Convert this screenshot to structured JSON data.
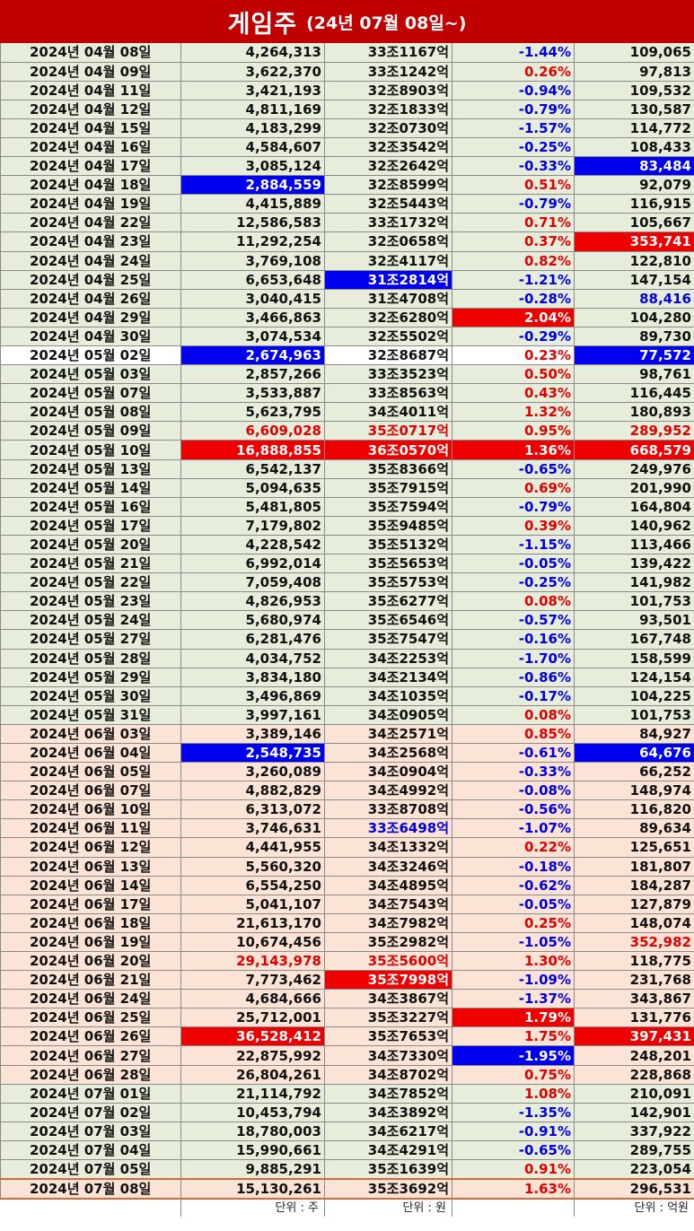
{
  "title": {
    "main": "게임주",
    "sub": "(24년 07월 08일~)"
  },
  "units": {
    "volume": "단위 : 주",
    "market_cap": "단위 : 원",
    "trade_value": "단위 : 억원"
  },
  "colors": {
    "title_bg": "#c00000",
    "highlight_red": "#ee0000",
    "highlight_blue": "#0000ee",
    "row_green": "#e6eedb",
    "row_peach": "#fbe4d6",
    "positive": "#e00000",
    "negative": "#0000e0"
  },
  "rows": [
    {
      "date": "2024년 04월 08일",
      "volume": "4,264,313",
      "cap": "33조1167억",
      "change": "-1.44%",
      "value": "109,065",
      "bg": "g",
      "dir": "neg"
    },
    {
      "date": "2024년 04월 09일",
      "volume": "3,622,370",
      "cap": "33조1242억",
      "change": "0.26%",
      "value": "97,813",
      "bg": "g",
      "dir": "pos"
    },
    {
      "date": "2024년 04월 11일",
      "volume": "3,421,193",
      "cap": "32조8903억",
      "change": "-0.94%",
      "value": "109,532",
      "bg": "g",
      "dir": "neg"
    },
    {
      "date": "2024년 04월 12일",
      "volume": "4,811,169",
      "cap": "32조1833억",
      "change": "-0.79%",
      "value": "130,587",
      "bg": "g",
      "dir": "neg"
    },
    {
      "date": "2024년 04월 15일",
      "volume": "4,183,299",
      "cap": "32조0730억",
      "change": "-1.57%",
      "value": "114,772",
      "bg": "g",
      "dir": "neg"
    },
    {
      "date": "2024년 04월 16일",
      "volume": "4,584,607",
      "cap": "32조3542억",
      "change": "-0.25%",
      "value": "108,433",
      "bg": "g",
      "dir": "neg"
    },
    {
      "date": "2024년 04월 17일",
      "volume": "3,085,124",
      "cap": "32조2642억",
      "change": "-0.33%",
      "value": "83,484",
      "bg": "g",
      "dir": "neg",
      "hl_value": "hblue"
    },
    {
      "date": "2024년 04월 18일",
      "volume": "2,884,559",
      "cap": "32조8599억",
      "change": "0.51%",
      "value": "92,079",
      "bg": "g",
      "dir": "pos",
      "hl_volume": "hblue"
    },
    {
      "date": "2024년 04월 19일",
      "volume": "4,415,889",
      "cap": "32조5443억",
      "change": "-0.79%",
      "value": "116,915",
      "bg": "g",
      "dir": "neg"
    },
    {
      "date": "2024년 04월 22일",
      "volume": "12,586,583",
      "cap": "33조1732억",
      "change": "0.71%",
      "value": "105,667",
      "bg": "g",
      "dir": "pos"
    },
    {
      "date": "2024년 04월 23일",
      "volume": "11,292,254",
      "cap": "32조0658억",
      "change": "0.37%",
      "value": "353,741",
      "bg": "g",
      "dir": "pos",
      "hl_value": "hred"
    },
    {
      "date": "2024년 04월 24일",
      "volume": "3,769,108",
      "cap": "32조4117억",
      "change": "0.82%",
      "value": "122,810",
      "bg": "g",
      "dir": "pos"
    },
    {
      "date": "2024년 04월 25일",
      "volume": "6,653,648",
      "cap": "31조2814억",
      "change": "-1.21%",
      "value": "147,154",
      "bg": "g",
      "dir": "neg",
      "hl_cap": "hblue"
    },
    {
      "date": "2024년 04월 26일",
      "volume": "3,040,415",
      "cap": "31조4708억",
      "change": "-0.28%",
      "value": "88,416",
      "bg": "g",
      "dir": "neg",
      "hl_value": "fblue"
    },
    {
      "date": "2024년 04월 29일",
      "volume": "3,466,863",
      "cap": "32조6280억",
      "change": "2.04%",
      "value": "104,280",
      "bg": "g",
      "dir": "pos",
      "hl_change": "hred"
    },
    {
      "date": "2024년 04월 30일",
      "volume": "3,074,534",
      "cap": "32조5502억",
      "change": "-0.29%",
      "value": "89,730",
      "bg": "g",
      "dir": "neg"
    },
    {
      "date": "2024년 05월 02일",
      "volume": "2,674,963",
      "cap": "32조8687억",
      "change": "0.23%",
      "value": "77,572",
      "bg": "w",
      "dir": "pos",
      "hl_volume": "hblue",
      "hl_value": "hblue"
    },
    {
      "date": "2024년 05월 03일",
      "volume": "2,857,266",
      "cap": "33조3523억",
      "change": "0.50%",
      "value": "98,761",
      "bg": "g",
      "dir": "pos"
    },
    {
      "date": "2024년 05월 07일",
      "volume": "3,533,887",
      "cap": "33조8563억",
      "change": "0.43%",
      "value": "116,445",
      "bg": "g",
      "dir": "pos"
    },
    {
      "date": "2024년 05월 08일",
      "volume": "5,623,795",
      "cap": "34조4011억",
      "change": "1.32%",
      "value": "180,893",
      "bg": "g",
      "dir": "pos"
    },
    {
      "date": "2024년 05월 09일",
      "volume": "6,609,028",
      "cap": "35조0717억",
      "change": "0.95%",
      "value": "289,952",
      "bg": "g",
      "dir": "pos",
      "hl_volume": "fred",
      "hl_cap": "fred",
      "hl_value": "fred"
    },
    {
      "date": "2024년 05월 10일",
      "volume": "16,888,855",
      "cap": "36조0570억",
      "change": "1.36%",
      "value": "668,579",
      "bg": "g",
      "dir": "pos",
      "hl_volume": "hred",
      "hl_cap": "hred",
      "hl_change": "hred",
      "hl_value": "hred"
    },
    {
      "date": "2024년 05월 13일",
      "volume": "6,542,137",
      "cap": "35조8366억",
      "change": "-0.65%",
      "value": "249,976",
      "bg": "g",
      "dir": "neg"
    },
    {
      "date": "2024년 05월 14일",
      "volume": "5,094,635",
      "cap": "35조7915억",
      "change": "0.69%",
      "value": "201,990",
      "bg": "g",
      "dir": "pos"
    },
    {
      "date": "2024년 05월 16일",
      "volume": "5,481,805",
      "cap": "35조7594억",
      "change": "-0.79%",
      "value": "164,804",
      "bg": "g",
      "dir": "neg"
    },
    {
      "date": "2024년 05월 17일",
      "volume": "7,179,802",
      "cap": "35조9485억",
      "change": "0.39%",
      "value": "140,962",
      "bg": "g",
      "dir": "pos"
    },
    {
      "date": "2024년 05월 20일",
      "volume": "4,228,542",
      "cap": "35조5132억",
      "change": "-1.15%",
      "value": "113,466",
      "bg": "g",
      "dir": "neg"
    },
    {
      "date": "2024년 05월 21일",
      "volume": "6,992,014",
      "cap": "35조5653억",
      "change": "-0.05%",
      "value": "139,422",
      "bg": "g",
      "dir": "neg"
    },
    {
      "date": "2024년 05월 22일",
      "volume": "7,059,408",
      "cap": "35조5753억",
      "change": "-0.25%",
      "value": "141,982",
      "bg": "g",
      "dir": "neg"
    },
    {
      "date": "2024년 05월 23일",
      "volume": "4,826,953",
      "cap": "35조6277억",
      "change": "0.08%",
      "value": "101,753",
      "bg": "g",
      "dir": "pos"
    },
    {
      "date": "2024년 05월 24일",
      "volume": "5,680,974",
      "cap": "35조6546억",
      "change": "-0.57%",
      "value": "93,501",
      "bg": "g",
      "dir": "neg"
    },
    {
      "date": "2024년 05월 27일",
      "volume": "6,281,476",
      "cap": "35조7547억",
      "change": "-0.16%",
      "value": "167,748",
      "bg": "g",
      "dir": "neg"
    },
    {
      "date": "2024년 05월 28일",
      "volume": "4,034,752",
      "cap": "34조2253억",
      "change": "-1.70%",
      "value": "158,599",
      "bg": "g",
      "dir": "neg"
    },
    {
      "date": "2024년 05월 29일",
      "volume": "3,834,180",
      "cap": "34조2134억",
      "change": "-0.86%",
      "value": "124,154",
      "bg": "g",
      "dir": "neg"
    },
    {
      "date": "2024년 05월 30일",
      "volume": "3,496,869",
      "cap": "34조1035억",
      "change": "-0.17%",
      "value": "104,225",
      "bg": "g",
      "dir": "neg"
    },
    {
      "date": "2024년 05월 31일",
      "volume": "3,997,161",
      "cap": "34조0905억",
      "change": "0.08%",
      "value": "101,753",
      "bg": "g",
      "dir": "pos"
    },
    {
      "date": "2024년 06월 03일",
      "volume": "3,389,146",
      "cap": "34조2571억",
      "change": "0.85%",
      "value": "84,927",
      "bg": "p",
      "dir": "pos"
    },
    {
      "date": "2024년 06월 04일",
      "volume": "2,548,735",
      "cap": "34조2568억",
      "change": "-0.61%",
      "value": "64,676",
      "bg": "p",
      "dir": "neg",
      "hl_volume": "hblue",
      "hl_value": "hblue"
    },
    {
      "date": "2024년 06월 05일",
      "volume": "3,260,089",
      "cap": "34조0904억",
      "change": "-0.33%",
      "value": "66,252",
      "bg": "p",
      "dir": "neg"
    },
    {
      "date": "2024년 06월 07일",
      "volume": "4,882,829",
      "cap": "34조4992억",
      "change": "-0.08%",
      "value": "148,974",
      "bg": "p",
      "dir": "neg"
    },
    {
      "date": "2024년 06월 10일",
      "volume": "6,313,072",
      "cap": "33조8708억",
      "change": "-0.56%",
      "value": "116,820",
      "bg": "p",
      "dir": "neg"
    },
    {
      "date": "2024년 06월 11일",
      "volume": "3,746,631",
      "cap": "33조6498억",
      "change": "-1.07%",
      "value": "89,634",
      "bg": "p",
      "dir": "neg",
      "hl_cap": "fblue"
    },
    {
      "date": "2024년 06월 12일",
      "volume": "4,441,955",
      "cap": "34조1332억",
      "change": "0.22%",
      "value": "125,651",
      "bg": "p",
      "dir": "pos"
    },
    {
      "date": "2024년 06월 13일",
      "volume": "5,560,320",
      "cap": "34조3246억",
      "change": "-0.18%",
      "value": "181,807",
      "bg": "p",
      "dir": "neg"
    },
    {
      "date": "2024년 06월 14일",
      "volume": "6,554,250",
      "cap": "34조4895억",
      "change": "-0.62%",
      "value": "184,287",
      "bg": "p",
      "dir": "neg"
    },
    {
      "date": "2024년 06월 17일",
      "volume": "5,041,107",
      "cap": "34조7543억",
      "change": "-0.05%",
      "value": "127,879",
      "bg": "p",
      "dir": "neg"
    },
    {
      "date": "2024년 06월 18일",
      "volume": "21,613,170",
      "cap": "34조7982억",
      "change": "0.25%",
      "value": "148,074",
      "bg": "p",
      "dir": "pos"
    },
    {
      "date": "2024년 06월 19일",
      "volume": "10,674,456",
      "cap": "35조2982억",
      "change": "-1.05%",
      "value": "352,982",
      "bg": "p",
      "dir": "neg",
      "hl_value": "fred"
    },
    {
      "date": "2024년 06월 20일",
      "volume": "29,143,978",
      "cap": "35조5600억",
      "change": "1.30%",
      "value": "118,775",
      "bg": "p",
      "dir": "pos",
      "hl_volume": "fred",
      "hl_cap": "fred"
    },
    {
      "date": "2024년 06월 21일",
      "volume": "7,773,462",
      "cap": "35조7998억",
      "change": "-1.09%",
      "value": "231,768",
      "bg": "p",
      "dir": "neg",
      "hl_cap": "hred"
    },
    {
      "date": "2024년 06월 24일",
      "volume": "4,684,666",
      "cap": "34조3867억",
      "change": "-1.37%",
      "value": "343,867",
      "bg": "p",
      "dir": "neg"
    },
    {
      "date": "2024년 06월 25일",
      "volume": "25,712,001",
      "cap": "35조3227억",
      "change": "1.79%",
      "value": "131,776",
      "bg": "p",
      "dir": "pos",
      "hl_change": "hred"
    },
    {
      "date": "2024년 06월 26일",
      "volume": "36,528,412",
      "cap": "35조7653억",
      "change": "1.75%",
      "value": "397,431",
      "bg": "p",
      "dir": "pos",
      "hl_volume": "hred",
      "hl_value": "hred"
    },
    {
      "date": "2024년 06월 27일",
      "volume": "22,875,992",
      "cap": "34조7330억",
      "change": "-1.95%",
      "value": "248,201",
      "bg": "p",
      "dir": "neg",
      "hl_change": "hblue"
    },
    {
      "date": "2024년 06월 28일",
      "volume": "26,804,261",
      "cap": "34조8702억",
      "change": "0.75%",
      "value": "228,868",
      "bg": "p",
      "dir": "pos"
    },
    {
      "date": "2024년 07월 01일",
      "volume": "21,114,792",
      "cap": "34조7852억",
      "change": "1.08%",
      "value": "210,091",
      "bg": "g",
      "dir": "pos"
    },
    {
      "date": "2024년 07월 02일",
      "volume": "10,453,794",
      "cap": "34조3892억",
      "change": "-1.35%",
      "value": "142,901",
      "bg": "g",
      "dir": "neg"
    },
    {
      "date": "2024년 07월 03일",
      "volume": "18,780,003",
      "cap": "34조6217억",
      "change": "-0.91%",
      "value": "337,922",
      "bg": "g",
      "dir": "neg"
    },
    {
      "date": "2024년 07월 04일",
      "volume": "15,990,661",
      "cap": "34조4291억",
      "change": "-0.65%",
      "value": "289,755",
      "bg": "g",
      "dir": "neg"
    },
    {
      "date": "2024년 07월 05일",
      "volume": "9,885,291",
      "cap": "35조1639억",
      "change": "0.91%",
      "value": "223,054",
      "bg": "g",
      "dir": "pos"
    },
    {
      "date": "2024년 07월 08일",
      "volume": "15,130,261",
      "cap": "35조3692억",
      "change": "1.63%",
      "value": "296,531",
      "bg": "p",
      "dir": "pos",
      "last": true
    }
  ]
}
